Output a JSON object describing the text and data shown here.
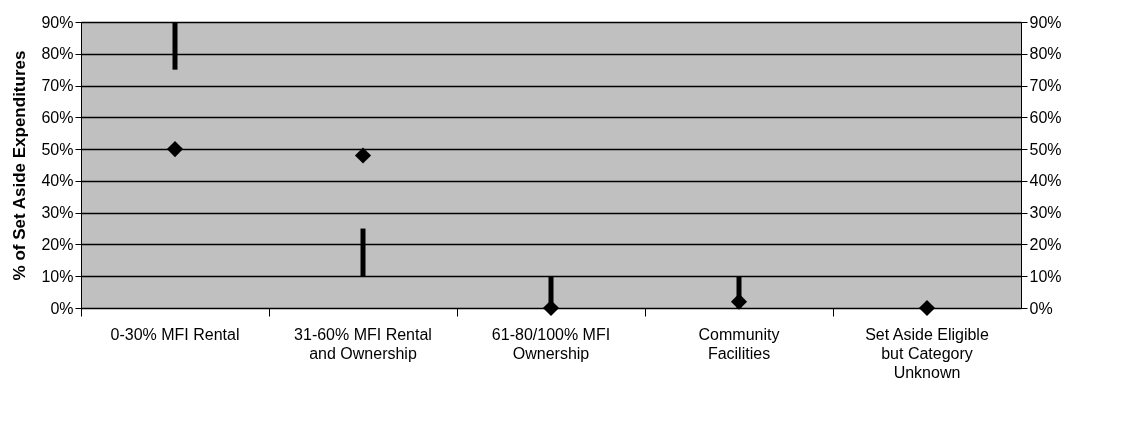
{
  "chart_data": {
    "type": "scatter",
    "ylabel": "% of Set Aside Expenditures",
    "categories": [
      "0-30% MFI Rental",
      "31-60% MFI Rental and Ownership",
      "61-80/100% MFI Ownership",
      "Community Facilities",
      "Set Aside Eligible but Category Unknown"
    ],
    "series": [
      {
        "type": "bar",
        "color": "#000000",
        "base": [
          75,
          10,
          0,
          0,
          null
        ],
        "values": [
          15,
          15,
          10,
          10,
          null
        ]
      },
      {
        "color": "#000000",
        "marker": "diamond",
        "values": [
          50,
          48,
          0,
          2,
          0
        ]
      }
    ],
    "ylim": [
      0,
      90
    ],
    "yticks": [
      {
        "value": 0,
        "label": "0%"
      },
      {
        "value": 10,
        "label": "10%"
      },
      {
        "value": 20,
        "label": "20%"
      },
      {
        "value": 30,
        "label": "30%"
      },
      {
        "value": 40,
        "label": "40%"
      },
      {
        "value": 50,
        "label": "50%"
      },
      {
        "value": 60,
        "label": "60%"
      },
      {
        "value": 70,
        "label": "70%"
      },
      {
        "value": 80,
        "label": "80%"
      },
      {
        "value": 90,
        "label": "90%"
      }
    ],
    "y2lim": [
      0,
      90
    ],
    "y2ticks": [
      {
        "value": 0,
        "label": "0%"
      },
      {
        "value": 10,
        "label": "10%"
      },
      {
        "value": 20,
        "label": "20%"
      },
      {
        "value": 30,
        "label": "30%"
      },
      {
        "value": 40,
        "label": "40%"
      },
      {
        "value": 50,
        "label": "50%"
      },
      {
        "value": 60,
        "label": "60%"
      },
      {
        "value": 70,
        "label": "70%"
      },
      {
        "value": 80,
        "label": "80%"
      },
      {
        "value": 90,
        "label": "90%"
      }
    ],
    "grid": "y"
  }
}
